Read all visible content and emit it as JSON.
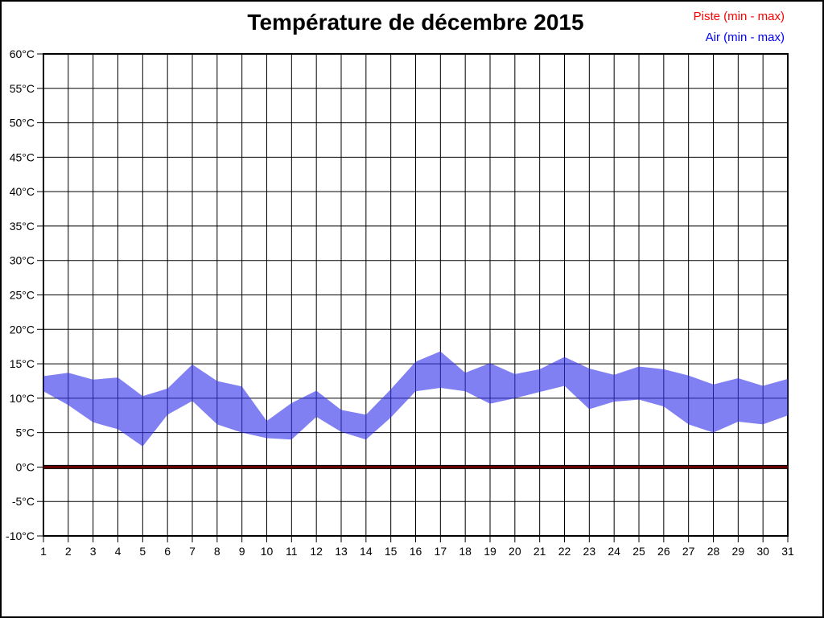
{
  "page": {
    "title": "Température de décembre 2015"
  },
  "legend": {
    "items": [
      {
        "label": "Piste (min - max)",
        "color": "#ff0000"
      },
      {
        "label": "Air (min - max)",
        "color": "#0000ff"
      }
    ]
  },
  "chart_data": {
    "type": "area",
    "title": "Température de décembre 2015",
    "xlabel": "",
    "ylabel": "",
    "x": [
      1,
      2,
      3,
      4,
      5,
      6,
      7,
      8,
      9,
      10,
      11,
      12,
      13,
      14,
      15,
      16,
      17,
      18,
      19,
      20,
      21,
      22,
      23,
      24,
      25,
      26,
      27,
      28,
      29,
      30,
      31
    ],
    "ylim": [
      -10,
      60
    ],
    "ytick_step": 5,
    "ytick_suffix": "°C",
    "grid": true,
    "legend_position": "top-right",
    "background": "#ffffff",
    "grid_color": "#000000",
    "band_fill": "rgb(50,50,235)",
    "band_fill_opacity": 0.62,
    "zero_line_color": "#7a0000",
    "series": [
      {
        "name": "Piste (min - max)",
        "color": "#ff0000",
        "min": [
          0,
          0,
          0,
          0,
          0,
          0,
          0,
          0,
          0,
          0,
          0,
          0,
          0,
          0,
          0,
          0,
          0,
          0,
          0,
          0,
          0,
          0,
          0,
          0,
          0,
          0,
          0,
          0,
          0,
          0,
          0
        ],
        "max": [
          0,
          0,
          0,
          0,
          0,
          0,
          0,
          0,
          0,
          0,
          0,
          0,
          0,
          0,
          0,
          0,
          0,
          0,
          0,
          0,
          0,
          0,
          0,
          0,
          0,
          0,
          0,
          0,
          0,
          0,
          0
        ]
      },
      {
        "name": "Air (min - max)",
        "color": "#0000ff",
        "min": [
          11.0,
          9.0,
          6.5,
          5.5,
          3.0,
          7.6,
          9.6,
          6.2,
          5.0,
          4.2,
          4.0,
          7.3,
          5.1,
          4.0,
          7.2,
          11.0,
          11.5,
          11.0,
          9.2,
          10.0,
          10.9,
          11.8,
          8.4,
          9.5,
          9.8,
          8.8,
          6.2,
          5.0,
          6.6,
          6.2,
          7.5
        ],
        "max": [
          13.2,
          13.7,
          12.7,
          13.0,
          10.3,
          11.4,
          14.9,
          12.5,
          11.7,
          6.7,
          9.3,
          11.1,
          8.3,
          7.6,
          11.3,
          15.3,
          16.8,
          13.7,
          15.1,
          13.5,
          14.2,
          16.0,
          14.3,
          13.4,
          14.6,
          14.2,
          13.3,
          12.0,
          12.9,
          11.8,
          12.8
        ]
      }
    ]
  }
}
